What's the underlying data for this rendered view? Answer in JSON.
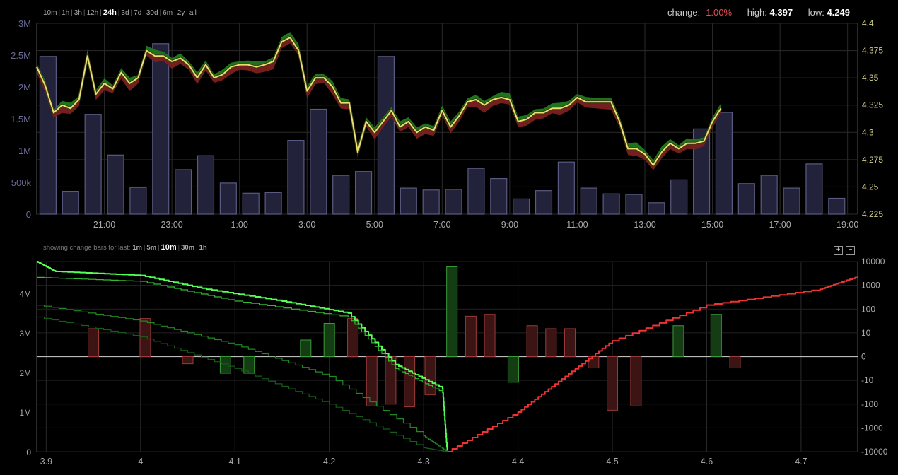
{
  "range_selector": {
    "options": [
      "10m",
      "1h",
      "3h",
      "12h",
      "24h",
      "3d",
      "7d",
      "30d",
      "6m",
      "2y",
      "all"
    ],
    "active": "24h"
  },
  "stats": {
    "change_label": "change:",
    "change_value": "-1.00%",
    "high_label": "high:",
    "high_value": "4.397",
    "low_label": "low:",
    "low_value": "4.249"
  },
  "change_bars_selector": {
    "prefix": "showing change bars for last:",
    "options": [
      "1m",
      "5m",
      "10m",
      "30m",
      "1h"
    ],
    "active": "10m"
  },
  "zoom": {
    "in_label": "+",
    "out_label": "−"
  },
  "chart_data": [
    {
      "type": "line",
      "title": "",
      "x_ticks": [
        "21:00",
        "23:00",
        "1:00",
        "3:00",
        "5:00",
        "7:00",
        "9:00",
        "11:00",
        "13:00",
        "15:00",
        "17:00",
        "19:00"
      ],
      "y_left_ticks": [
        "0",
        "500k",
        "1M",
        "1.5M",
        "2M",
        "2.5M",
        "3M"
      ],
      "y_left_range": [
        0,
        3000000
      ],
      "y_right_ticks": [
        "4.225",
        "4.25",
        "4.275",
        "4.3",
        "4.325",
        "4.35",
        "4.375",
        "4.4"
      ],
      "y_right_range": [
        4.225,
        4.4
      ],
      "grid": true,
      "colors": {
        "price": "#e8e070",
        "upper": "#1f7a1f",
        "lower": "#7a2020",
        "volume_fill": "#22223a",
        "volume_stroke": "#5a5a80"
      },
      "volume": {
        "time_start_hour": 19.333,
        "hour_step": 0.667,
        "values": [
          2480000,
          360000,
          1570000,
          930000,
          420000,
          2680000,
          700000,
          920000,
          490000,
          330000,
          340000,
          1160000,
          1650000,
          610000,
          670000,
          2480000,
          410000,
          380000,
          390000,
          720000,
          560000,
          240000,
          370000,
          820000,
          410000,
          320000,
          310000,
          180000,
          540000,
          1340000,
          1600000,
          480000,
          610000,
          410000,
          790000,
          250000
        ]
      },
      "price": {
        "time_start_hour": 19.0,
        "hour_step": 0.25,
        "values": [
          4.36,
          4.343,
          4.318,
          4.325,
          4.322,
          4.33,
          4.37,
          4.335,
          4.345,
          4.34,
          4.355,
          4.345,
          4.35,
          4.375,
          4.37,
          4.37,
          4.365,
          4.368,
          4.362,
          4.35,
          4.362,
          4.35,
          4.353,
          4.36,
          4.362,
          4.362,
          4.36,
          4.362,
          4.365,
          4.383,
          4.387,
          4.375,
          4.338,
          4.35,
          4.35,
          4.342,
          4.327,
          4.327,
          4.282,
          4.31,
          4.3,
          4.31,
          4.32,
          4.305,
          4.31,
          4.3,
          4.305,
          4.302,
          4.32,
          4.305,
          4.315,
          4.328,
          4.33,
          4.325,
          4.33,
          4.332,
          4.33,
          4.31,
          4.312,
          4.318,
          4.318,
          4.322,
          4.322,
          4.325,
          4.332,
          4.328,
          4.328,
          4.328,
          4.328,
          4.31,
          4.285,
          4.285,
          4.28,
          4.27,
          4.282,
          4.29,
          4.285,
          4.29,
          4.29,
          4.292,
          4.31,
          4.322
        ]
      }
    },
    {
      "type": "line",
      "title": "",
      "x_ticks": [
        "3.9",
        "4",
        "4.1",
        "4.2",
        "4.3",
        "4.4",
        "4.5",
        "4.6",
        "4.7"
      ],
      "x_range": [
        3.89,
        4.76
      ],
      "y_left_ticks": [
        "0",
        "1M",
        "2M",
        "3M",
        "4M"
      ],
      "y_left_range": [
        0,
        4800000
      ],
      "y_right_ticks": [
        "-10000",
        "-1000",
        "-100",
        "-10",
        "0",
        "10",
        "100",
        "1000",
        "10000"
      ],
      "grid": true,
      "series": [
        {
          "name": "",
          "color": "#55ff55",
          "points": [
            [
              3.89,
              4800000
            ],
            [
              3.91,
              4550000
            ],
            [
              4.0,
              4450000
            ],
            [
              4.07,
              4100000
            ],
            [
              4.15,
              3800000
            ],
            [
              4.22,
              3500000
            ],
            [
              4.27,
              2200000
            ],
            [
              4.32,
              1600000
            ],
            [
              4.325,
              0
            ]
          ]
        },
        {
          "name": "",
          "color": "#33bb33",
          "points": [
            [
              3.89,
              4400000
            ],
            [
              4.0,
              4300000
            ],
            [
              4.1,
              3800000
            ],
            [
              4.22,
              3400000
            ],
            [
              4.27,
              2100000
            ],
            [
              4.32,
              1500000
            ]
          ]
        },
        {
          "name": "",
          "color": "#228822",
          "points": [
            [
              3.89,
              3700000
            ],
            [
              4.0,
              3300000
            ],
            [
              4.1,
              2700000
            ],
            [
              4.2,
              1900000
            ],
            [
              4.3,
              400000
            ],
            [
              4.325,
              0
            ]
          ]
        },
        {
          "name": "",
          "color": "#185a18",
          "points": [
            [
              3.89,
              3400000
            ],
            [
              4.0,
              2900000
            ],
            [
              4.1,
              2100000
            ],
            [
              4.2,
              1200000
            ],
            [
              4.3,
              100000
            ],
            [
              4.325,
              0
            ]
          ]
        },
        {
          "name": "",
          "color": "#ee3333",
          "points": [
            [
              4.325,
              0
            ],
            [
              4.4,
              1000000
            ],
            [
              4.45,
              1900000
            ],
            [
              4.5,
              2800000
            ],
            [
              4.6,
              3700000
            ],
            [
              4.72,
              4100000
            ],
            [
              4.76,
              4420000
            ]
          ]
        }
      ],
      "change_bars": [
        {
          "x": 3.95,
          "v": 15
        },
        {
          "x": 4.005,
          "v": 40
        },
        {
          "x": 4.05,
          "v": -2
        },
        {
          "x": 4.09,
          "v": -5
        },
        {
          "x": 4.115,
          "v": -5
        },
        {
          "x": 4.175,
          "v": 5
        },
        {
          "x": 4.2,
          "v": 25
        },
        {
          "x": 4.225,
          "v": 40
        },
        {
          "x": 4.245,
          "v": -120
        },
        {
          "x": 4.265,
          "v": -100
        },
        {
          "x": 4.285,
          "v": -130
        },
        {
          "x": 4.307,
          "v": -40
        },
        {
          "x": 4.33,
          "v": 6000
        },
        {
          "x": 4.35,
          "v": 50
        },
        {
          "x": 4.37,
          "v": 60
        },
        {
          "x": 4.395,
          "v": -12
        },
        {
          "x": 4.415,
          "v": 20
        },
        {
          "x": 4.435,
          "v": 15
        },
        {
          "x": 4.455,
          "v": 15
        },
        {
          "x": 4.48,
          "v": -3
        },
        {
          "x": 4.5,
          "v": -180
        },
        {
          "x": 4.525,
          "v": -120
        },
        {
          "x": 4.57,
          "v": 20
        },
        {
          "x": 4.61,
          "v": 60
        },
        {
          "x": 4.63,
          "v": -3
        }
      ]
    }
  ]
}
